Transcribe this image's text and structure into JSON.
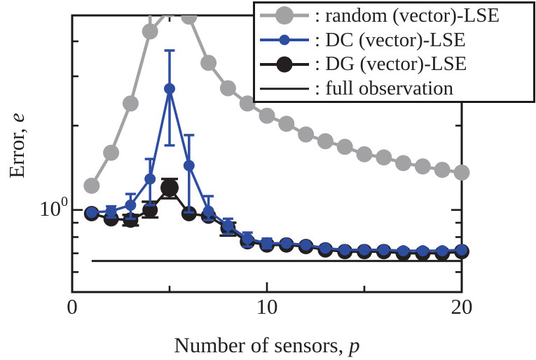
{
  "palette": {
    "ink": "#231f20",
    "axis": "#1a1a1a",
    "background": "#ffffff"
  },
  "legend": {
    "items": [
      {
        "label": ": random (vector)-LSE",
        "marker": "circle",
        "color": "#a2a2a4",
        "dot": 26,
        "line_w": 5
      },
      {
        "label": ": DC (vector)-LSE",
        "marker": "circle",
        "color": "#2e4d9f",
        "dot": 15,
        "line_w": 4
      },
      {
        "label": ": DG (vector)-LSE",
        "marker": "circle",
        "color": "#231f20",
        "dot": 23,
        "line_w": 4
      },
      {
        "label": ": full observation",
        "marker": "line",
        "color": "#231f20",
        "dot": 0,
        "line_w": 3.5
      }
    ]
  },
  "chart_data": {
    "type": "line",
    "title": "",
    "xlabel": {
      "text": "Number of sensors, ",
      "var": "p"
    },
    "ylabel": {
      "text": "Error, ",
      "var": "e"
    },
    "x_scale": "linear",
    "y_scale": "log",
    "xlim": [
      0,
      20
    ],
    "ylim": [
      0.509,
      4.95
    ],
    "grid": false,
    "legend_position": "top-right",
    "x_ticks_major": [
      0,
      10,
      20
    ],
    "x_tick_labels": [
      "0",
      "10",
      "20"
    ],
    "x_ticks_minor": [
      5,
      15
    ],
    "y_ticks_major": [
      1
    ],
    "y_tick_label": {
      "base": "10",
      "exp": "0",
      "value": 1
    },
    "y_ticks_minor": [
      0.6,
      0.7,
      0.8,
      0.9,
      2,
      3,
      4
    ],
    "x": [
      1,
      2,
      3,
      4,
      5,
      6,
      7,
      8,
      9,
      10,
      11,
      12,
      13,
      14,
      15,
      16,
      17,
      18,
      19,
      20
    ],
    "series": [
      {
        "name": "random (vector)-LSE",
        "color": "#a2a2a4",
        "marker": "circle",
        "marker_r": 11.5,
        "line_w": 4.5,
        "cap_w": 14,
        "values": [
          1.22,
          1.6,
          2.4,
          4.34,
          5.2,
          4.9,
          3.35,
          2.72,
          2.4,
          2.17,
          2.03,
          1.86,
          1.76,
          1.68,
          1.58,
          1.54,
          1.47,
          1.43,
          1.39,
          1.36
        ],
        "errors": {
          "4": [
            4.34,
            6.0
          ]
        }
      },
      {
        "name": "DG (vector)-LSE",
        "color": "#231f20",
        "marker": "circle",
        "marker_r": 11,
        "line_w": 3.5,
        "cap_w": 24,
        "values": [
          0.97,
          0.93,
          0.92,
          1.0,
          1.2,
          0.97,
          0.95,
          0.86,
          0.77,
          0.75,
          0.75,
          0.74,
          0.72,
          0.71,
          0.71,
          0.71,
          0.7,
          0.7,
          0.7,
          0.71
        ],
        "errors": {
          "3": [
            0.88,
            0.96
          ],
          "4": [
            0.94,
            1.07
          ],
          "5": [
            1.1,
            1.29
          ],
          "8": [
            0.81,
            0.9
          ]
        },
        "marker_r_over": {
          "5": 13
        }
      },
      {
        "name": "DC (vector)-LSE",
        "color": "#2e4d9f",
        "marker": "circle",
        "marker_r": 8,
        "line_w": 3.5,
        "cap_w": 15,
        "values": [
          0.98,
          0.99,
          1.04,
          1.29,
          2.71,
          1.44,
          0.99,
          0.88,
          0.79,
          0.76,
          0.76,
          0.75,
          0.73,
          0.72,
          0.72,
          0.72,
          0.715,
          0.715,
          0.715,
          0.72
        ],
        "errors": {
          "2": [
            0.94,
            1.03
          ],
          "3": [
            0.93,
            1.14
          ],
          "4": [
            1.04,
            1.52
          ],
          "5": [
            1.7,
            3.71
          ],
          "6": [
            0.98,
            1.85
          ],
          "7": [
            0.92,
            1.12
          ],
          "8": [
            0.82,
            0.93
          ],
          "9": [
            0.74,
            0.83
          ],
          "10": [
            0.73,
            0.79
          ]
        }
      }
    ],
    "reference_line": {
      "name": "full observation",
      "value": 0.657,
      "x_start": 1,
      "x_end": 20.05,
      "color": "#231f20",
      "line_w": 3
    }
  }
}
